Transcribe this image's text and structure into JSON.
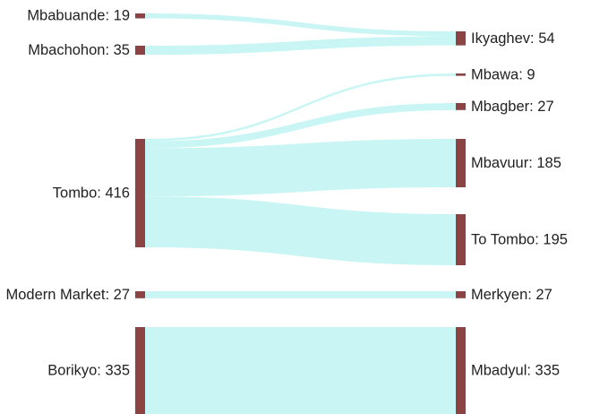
{
  "diagram": {
    "type": "sankey",
    "colors": {
      "node": "#8b4343",
      "link": "#c9f6f4"
    },
    "source_nodes": [
      {
        "id": "mbabuande",
        "label": "Mbabuande: 19",
        "name": "Mbabuande",
        "value": 19
      },
      {
        "id": "mbachohon",
        "label": "Mbachohon: 35",
        "name": "Mbachohon",
        "value": 35
      },
      {
        "id": "tombo",
        "label": "Tombo: 416",
        "name": "Tombo",
        "value": 416
      },
      {
        "id": "modern-market",
        "label": "Modern Market: 27",
        "name": "Modern Market",
        "value": 27
      },
      {
        "id": "borikyo",
        "label": "Borikyo: 335",
        "name": "Borikyo",
        "value": 335
      }
    ],
    "target_nodes": [
      {
        "id": "ikyaghev",
        "label": "Ikyaghev: 54",
        "name": "Ikyaghev",
        "value": 54
      },
      {
        "id": "mbawa",
        "label": "Mbawa: 9",
        "name": "Mbawa",
        "value": 9
      },
      {
        "id": "mbagber",
        "label": "Mbagber: 27",
        "name": "Mbagber",
        "value": 27
      },
      {
        "id": "mbavuur",
        "label": "Mbavuur: 185",
        "name": "Mbavuur",
        "value": 185
      },
      {
        "id": "to-tombo",
        "label": "To Tombo: 195",
        "name": "To Tombo",
        "value": 195
      },
      {
        "id": "merkyen",
        "label": "Merkyen: 27",
        "name": "Merkyen",
        "value": 27
      },
      {
        "id": "mbadyul",
        "label": "Mbadyul: 335",
        "name": "Mbadyul",
        "value": 335
      }
    ],
    "links": [
      {
        "source": "mbabuande",
        "target": "ikyaghev",
        "value": 19
      },
      {
        "source": "mbachohon",
        "target": "ikyaghev",
        "value": 35
      },
      {
        "source": "tombo",
        "target": "mbawa",
        "value": 9
      },
      {
        "source": "tombo",
        "target": "mbagber",
        "value": 27
      },
      {
        "source": "tombo",
        "target": "mbavuur",
        "value": 185
      },
      {
        "source": "tombo",
        "target": "to-tombo",
        "value": 195
      },
      {
        "source": "modern-market",
        "target": "merkyen",
        "value": 27
      },
      {
        "source": "borikyo",
        "target": "mbadyul",
        "value": 335
      }
    ]
  }
}
